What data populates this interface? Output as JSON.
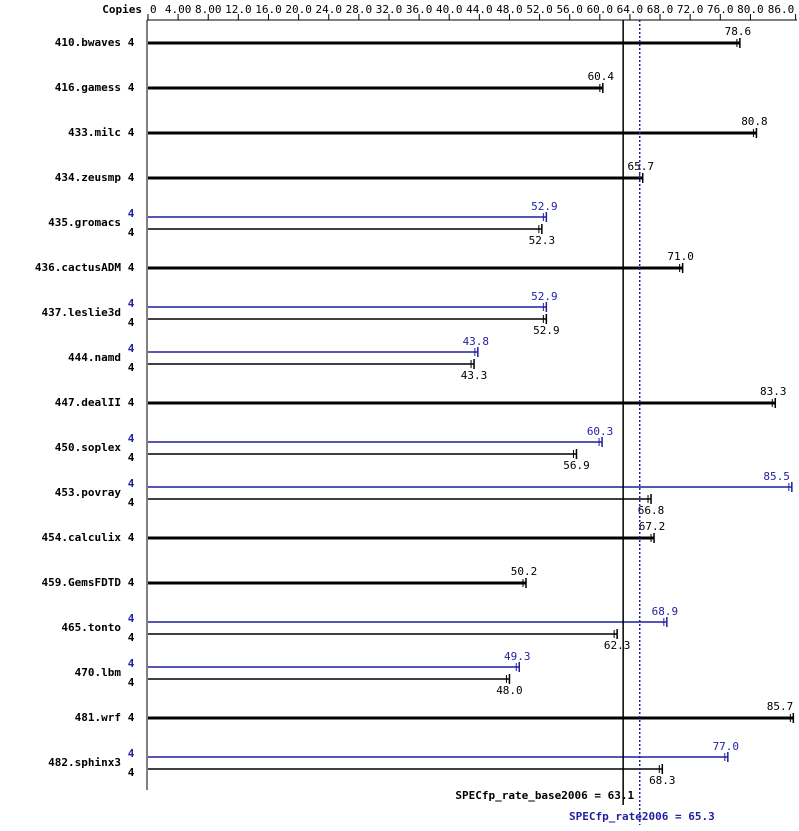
{
  "chart_data": {
    "type": "bar",
    "header": "Copies",
    "categories": [
      "410.bwaves",
      "416.gamess",
      "433.milc",
      "434.zeusmp",
      "435.gromacs",
      "436.cactusADM",
      "437.leslie3d",
      "444.namd",
      "447.dealII",
      "450.soplex",
      "453.povray",
      "454.calculix",
      "459.GemsFDTD",
      "465.tonto",
      "470.lbm",
      "481.wrf",
      "482.sphinx3"
    ],
    "series": [
      {
        "color": "#1f1f9f",
        "copies": [
          null,
          null,
          null,
          null,
          4,
          null,
          4,
          4,
          null,
          4,
          4,
          null,
          null,
          4,
          4,
          null,
          4
        ],
        "values": [
          null,
          null,
          null,
          null,
          52.9,
          null,
          52.9,
          43.8,
          null,
          60.3,
          85.5,
          null,
          null,
          68.9,
          49.3,
          null,
          77.0
        ],
        "value_labels": [
          null,
          null,
          null,
          null,
          "52.9",
          null,
          "52.9",
          "43.8",
          null,
          "60.3",
          "85.5",
          null,
          null,
          "68.9",
          "49.3",
          null,
          "77.0"
        ]
      },
      {
        "color": "#000000",
        "copies": [
          4,
          4,
          4,
          4,
          4,
          4,
          4,
          4,
          4,
          4,
          4,
          4,
          4,
          4,
          4,
          4,
          4
        ],
        "values": [
          78.6,
          60.4,
          80.8,
          65.7,
          52.3,
          71.0,
          52.9,
          43.3,
          83.3,
          56.9,
          66.8,
          67.2,
          50.2,
          62.3,
          48.0,
          85.7,
          68.3
        ],
        "value_labels": [
          "78.6",
          "60.4",
          "80.8",
          "65.7",
          "52.3",
          "71.0",
          "52.9",
          "43.3",
          "83.3",
          "56.9",
          "66.8",
          "67.2",
          "50.2",
          "62.3",
          "48.0",
          "85.7",
          "68.3"
        ]
      }
    ],
    "reference_lines": [
      {
        "label": "SPECfp_rate_base2006 = 63.1",
        "value": 63.1,
        "color": "#000000"
      },
      {
        "label": "SPECfp_rate2006 = 65.3",
        "value": 65.3,
        "color": "#1f1f9f"
      }
    ],
    "xlim": [
      0,
      86
    ],
    "xticks": [
      0,
      {
        "value": 4,
        "label": "4.00"
      },
      {
        "value": 8,
        "label": "8.00"
      },
      {
        "value": 12,
        "label": "12.0"
      },
      {
        "value": 16,
        "label": "16.0"
      },
      {
        "value": 20,
        "label": "20.0"
      },
      {
        "value": 24,
        "label": "24.0"
      },
      {
        "value": 28,
        "label": "28.0"
      },
      {
        "value": 32,
        "label": "32.0"
      },
      {
        "value": 36,
        "label": "36.0"
      },
      {
        "value": 40,
        "label": "40.0"
      },
      {
        "value": 44,
        "label": "44.0"
      },
      {
        "value": 48,
        "label": "48.0"
      },
      {
        "value": 52,
        "label": "52.0"
      },
      {
        "value": 56,
        "label": "56.0"
      },
      {
        "value": 60,
        "label": "60.0"
      },
      {
        "value": 64,
        "label": "64.0"
      },
      {
        "value": 68,
        "label": "68.0"
      },
      {
        "value": 72,
        "label": "72.0"
      },
      {
        "value": 76,
        "label": "76.0"
      },
      {
        "value": 80,
        "label": "80.0"
      },
      {
        "value": 86,
        "label": "86.0"
      }
    ]
  }
}
